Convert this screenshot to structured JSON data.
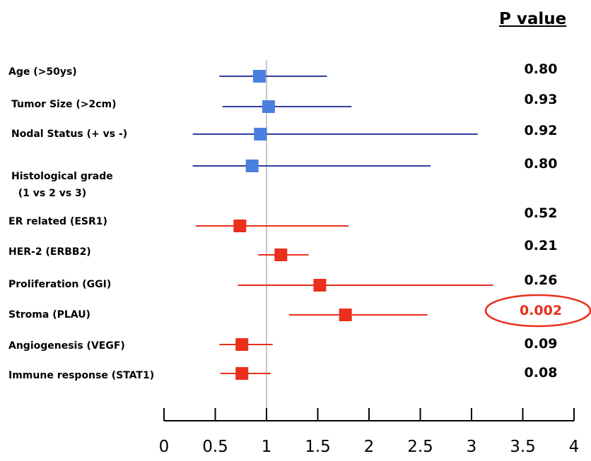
{
  "chart_data": {
    "type": "forest",
    "p_value_title": "P value",
    "categories": [
      "Age (>50ys)",
      "Tumor Size (>2cm)",
      "Nodal Status (+ vs -)",
      "Histological grade\n  (1 vs 2 vs 3)",
      "ER related (ESR1)",
      "HER-2 (ERBB2)",
      "Proliferation (GGI)",
      "Stroma (PLAU)",
      "Angiogenesis (VEGF)",
      "Immune response (STAT1)"
    ],
    "estimates": [
      0.93,
      1.02,
      0.94,
      0.86,
      0.74,
      1.14,
      1.52,
      1.77,
      0.76,
      0.76
    ],
    "lower": [
      0.54,
      0.57,
      0.28,
      0.28,
      0.31,
      0.92,
      0.72,
      1.22,
      0.54,
      0.55
    ],
    "upper": [
      1.59,
      1.83,
      3.06,
      2.6,
      1.8,
      1.41,
      3.21,
      2.57,
      1.06,
      1.04
    ],
    "line_colors": [
      "#2e3f9e",
      "#2e3f9e",
      "#2e3f9e",
      "#2e3f9e",
      "#e8301c",
      "#e8301c",
      "#e8301c",
      "#e8301c",
      "#e8301c",
      "#e8301c"
    ],
    "marker_colors": [
      "#4a7fe0",
      "#4a7fe0",
      "#4a7fe0",
      "#4a7fe0",
      "#e8301c",
      "#e8301c",
      "#e8301c",
      "#e8301c",
      "#e8301c",
      "#e8301c"
    ],
    "p_values": [
      0.8,
      0.93,
      0.92,
      0.8,
      0.52,
      0.21,
      0.26,
      0.002,
      0.09,
      0.08
    ],
    "p_value_labels": [
      "0.80",
      "0.93",
      "0.92",
      "0.80",
      "0.52",
      "0.21",
      "0.26",
      "0.002",
      "0.09",
      "0.08"
    ],
    "p_value_colors": [
      "#000000",
      "#000000",
      "#000000",
      "#000000",
      "#000000",
      "#000000",
      "#000000",
      "#e8301c",
      "#000000",
      "#000000"
    ],
    "reference_line": 1,
    "xlim": [
      0,
      4
    ],
    "xticks": [
      0,
      0.5,
      1,
      1.5,
      2,
      2.5,
      3,
      3.5,
      4
    ]
  }
}
